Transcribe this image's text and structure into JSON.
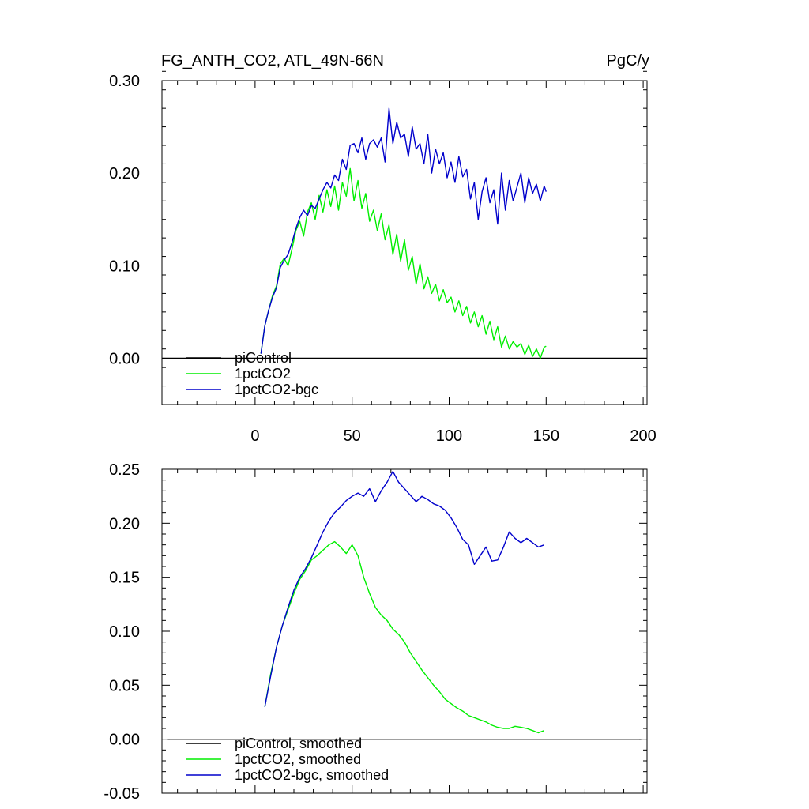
{
  "colors": {
    "piControl": "#000000",
    "1pctCO2": "#00ee00",
    "1pctCO2-bgc": "#0000cc"
  },
  "chart_data": [
    {
      "type": "line",
      "title": "FG_ANTH_CO2, ATL_49N-66N",
      "unit_label": "PgC/y",
      "xlim": [
        -48,
        202
      ],
      "ylim": [
        -0.05,
        0.3
      ],
      "x_ticks": [
        0,
        50,
        100,
        150,
        200
      ],
      "x_tick_labels": [
        "0",
        "50",
        "100",
        "150",
        "200"
      ],
      "y_ticks": [
        0.0,
        0.1,
        0.2,
        0.3
      ],
      "y_tick_labels": [
        "0.00",
        "0.10",
        "0.20",
        "0.30"
      ],
      "legend_position": "bottom-left",
      "series": [
        {
          "name": "piControl",
          "color_key": "piControl",
          "x": [
            -48,
            202
          ],
          "y": [
            0,
            0
          ]
        },
        {
          "name": "1pctCO2",
          "color_key": "1pctCO2",
          "x": [
            3,
            5,
            7,
            9,
            11,
            13,
            15,
            17,
            19,
            21,
            23,
            25,
            27,
            29,
            31,
            33,
            35,
            37,
            39,
            41,
            43,
            45,
            47,
            49,
            51,
            53,
            55,
            57,
            59,
            61,
            63,
            65,
            67,
            69,
            71,
            73,
            75,
            77,
            79,
            81,
            83,
            85,
            87,
            89,
            91,
            93,
            95,
            97,
            99,
            101,
            103,
            105,
            107,
            109,
            111,
            113,
            115,
            117,
            119,
            121,
            123,
            125,
            127,
            129,
            131,
            133,
            135,
            137,
            139,
            141,
            143,
            145,
            147,
            149,
            150
          ],
          "y": [
            0.005,
            0.035,
            0.052,
            0.068,
            0.078,
            0.102,
            0.108,
            0.1,
            0.118,
            0.138,
            0.148,
            0.132,
            0.158,
            0.168,
            0.15,
            0.176,
            0.158,
            0.182,
            0.164,
            0.186,
            0.16,
            0.19,
            0.175,
            0.205,
            0.17,
            0.192,
            0.162,
            0.178,
            0.148,
            0.16,
            0.138,
            0.156,
            0.128,
            0.144,
            0.112,
            0.134,
            0.105,
            0.128,
            0.095,
            0.11,
            0.08,
            0.102,
            0.075,
            0.088,
            0.07,
            0.08,
            0.062,
            0.074,
            0.06,
            0.066,
            0.05,
            0.062,
            0.046,
            0.056,
            0.038,
            0.05,
            0.034,
            0.046,
            0.026,
            0.04,
            0.02,
            0.034,
            0.012,
            0.024,
            0.01,
            0.018,
            0.012,
            0.016,
            0.004,
            0.014,
            0.002,
            0.01,
            0.0,
            0.012,
            0.013
          ]
        },
        {
          "name": "1pctCO2-bgc",
          "color_key": "1pctCO2-bgc",
          "x": [
            3,
            5,
            7,
            9,
            11,
            13,
            15,
            17,
            19,
            21,
            23,
            25,
            27,
            29,
            31,
            33,
            35,
            37,
            39,
            41,
            43,
            45,
            47,
            49,
            51,
            53,
            55,
            57,
            59,
            61,
            63,
            65,
            67,
            69,
            71,
            73,
            75,
            77,
            79,
            81,
            83,
            85,
            87,
            89,
            91,
            93,
            95,
            97,
            99,
            101,
            103,
            105,
            107,
            109,
            111,
            113,
            115,
            117,
            119,
            121,
            123,
            125,
            127,
            129,
            131,
            133,
            135,
            137,
            139,
            141,
            143,
            145,
            147,
            149,
            150
          ],
          "y": [
            0.005,
            0.035,
            0.052,
            0.066,
            0.076,
            0.098,
            0.106,
            0.112,
            0.125,
            0.14,
            0.152,
            0.16,
            0.154,
            0.165,
            0.162,
            0.172,
            0.182,
            0.19,
            0.184,
            0.198,
            0.192,
            0.215,
            0.204,
            0.23,
            0.232,
            0.222,
            0.238,
            0.215,
            0.232,
            0.236,
            0.228,
            0.238,
            0.212,
            0.27,
            0.232,
            0.255,
            0.238,
            0.242,
            0.218,
            0.25,
            0.226,
            0.232,
            0.21,
            0.242,
            0.2,
            0.226,
            0.21,
            0.222,
            0.195,
            0.212,
            0.19,
            0.218,
            0.196,
            0.204,
            0.172,
            0.19,
            0.15,
            0.18,
            0.195,
            0.168,
            0.182,
            0.145,
            0.2,
            0.16,
            0.192,
            0.17,
            0.185,
            0.2,
            0.168,
            0.195,
            0.178,
            0.188,
            0.17,
            0.186,
            0.18
          ]
        }
      ]
    },
    {
      "type": "line",
      "title": "",
      "unit_label": "",
      "xlim": [
        -48,
        202
      ],
      "ylim": [
        -0.05,
        0.25
      ],
      "x_ticks": [
        0,
        50,
        100,
        150,
        200
      ],
      "y_ticks": [
        -0.05,
        0.0,
        0.05,
        0.1,
        0.15,
        0.2,
        0.25
      ],
      "y_tick_labels": [
        "-0.05",
        "0.00",
        "0.05",
        "0.10",
        "0.15",
        "0.20",
        "0.25"
      ],
      "legend_position": "bottom-left",
      "series": [
        {
          "name": "piControl, smoothed",
          "color_key": "piControl",
          "x": [
            -45,
            199
          ],
          "y": [
            0,
            0
          ]
        },
        {
          "name": "1pctCO2, smoothed",
          "color_key": "1pctCO2",
          "x": [
            5,
            8,
            11,
            14,
            17,
            20,
            23,
            26,
            29,
            32,
            35,
            38,
            41,
            44,
            47,
            50,
            53,
            56,
            59,
            62,
            65,
            68,
            71,
            74,
            77,
            80,
            83,
            86,
            89,
            92,
            95,
            98,
            101,
            104,
            107,
            110,
            113,
            116,
            119,
            122,
            125,
            128,
            131,
            134,
            137,
            140,
            143,
            146,
            149
          ],
          "y": [
            0.03,
            0.06,
            0.085,
            0.105,
            0.12,
            0.135,
            0.148,
            0.156,
            0.166,
            0.17,
            0.175,
            0.18,
            0.183,
            0.178,
            0.172,
            0.18,
            0.17,
            0.15,
            0.135,
            0.122,
            0.115,
            0.11,
            0.102,
            0.097,
            0.09,
            0.08,
            0.072,
            0.064,
            0.057,
            0.05,
            0.044,
            0.037,
            0.033,
            0.029,
            0.026,
            0.022,
            0.02,
            0.018,
            0.016,
            0.013,
            0.011,
            0.01,
            0.01,
            0.012,
            0.011,
            0.01,
            0.008,
            0.006,
            0.008
          ]
        },
        {
          "name": "1pctCO2-bgc, smoothed",
          "color_key": "1pctCO2-bgc",
          "x": [
            5,
            8,
            11,
            14,
            17,
            20,
            23,
            26,
            29,
            32,
            35,
            38,
            41,
            44,
            47,
            50,
            53,
            56,
            59,
            62,
            65,
            68,
            71,
            74,
            77,
            80,
            83,
            86,
            89,
            92,
            95,
            98,
            101,
            104,
            107,
            110,
            113,
            116,
            119,
            122,
            125,
            128,
            131,
            134,
            137,
            140,
            143,
            146,
            149
          ],
          "y": [
            0.03,
            0.058,
            0.085,
            0.105,
            0.122,
            0.138,
            0.15,
            0.158,
            0.168,
            0.18,
            0.192,
            0.202,
            0.21,
            0.215,
            0.221,
            0.225,
            0.228,
            0.225,
            0.232,
            0.22,
            0.23,
            0.238,
            0.248,
            0.238,
            0.232,
            0.226,
            0.22,
            0.225,
            0.222,
            0.218,
            0.216,
            0.212,
            0.205,
            0.196,
            0.185,
            0.18,
            0.162,
            0.17,
            0.178,
            0.165,
            0.166,
            0.178,
            0.192,
            0.186,
            0.182,
            0.186,
            0.182,
            0.178,
            0.18
          ]
        }
      ]
    }
  ]
}
